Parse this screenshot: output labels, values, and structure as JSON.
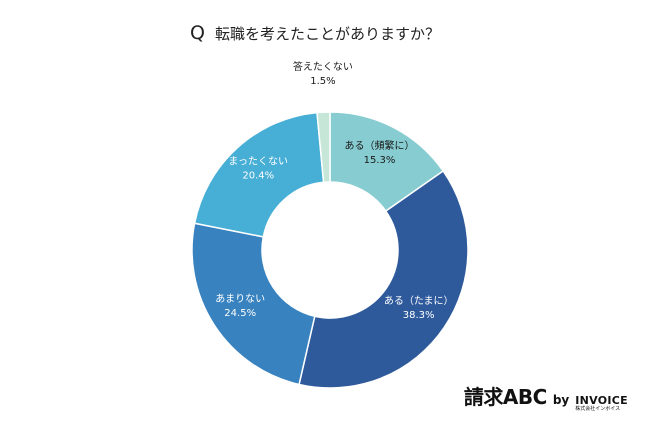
{
  "title": {
    "q_mark": "Q",
    "text": "転職を考えたことがありますか？"
  },
  "chart_data": {
    "type": "pie",
    "title": "転職を考えたことがありますか？",
    "donut": true,
    "slices": [
      {
        "label": "ある（頻繁に）",
        "value": 15.3,
        "value_label": "15.3%",
        "color": "#86ccd0",
        "text_color": "#1a1a1a"
      },
      {
        "label": "ある（たまに）",
        "value": 38.3,
        "value_label": "38.3%",
        "color": "#2e5a9c",
        "text_color": "#ffffff"
      },
      {
        "label": "あまりない",
        "value": 24.5,
        "value_label": "24.5%",
        "color": "#3782bf",
        "text_color": "#ffffff"
      },
      {
        "label": "まったくない",
        "value": 20.4,
        "value_label": "20.4%",
        "color": "#47aed6",
        "text_color": "#ffffff"
      },
      {
        "label": "答えたくない",
        "value": 1.5,
        "value_label": "1.5%",
        "color": "#c6e6d8",
        "text_color": "#1a1a1a"
      }
    ]
  },
  "brand": {
    "main": "請求ABC",
    "by": "by",
    "invoice": "INVOICE",
    "invoice_sub": "株式会社インボイス"
  }
}
